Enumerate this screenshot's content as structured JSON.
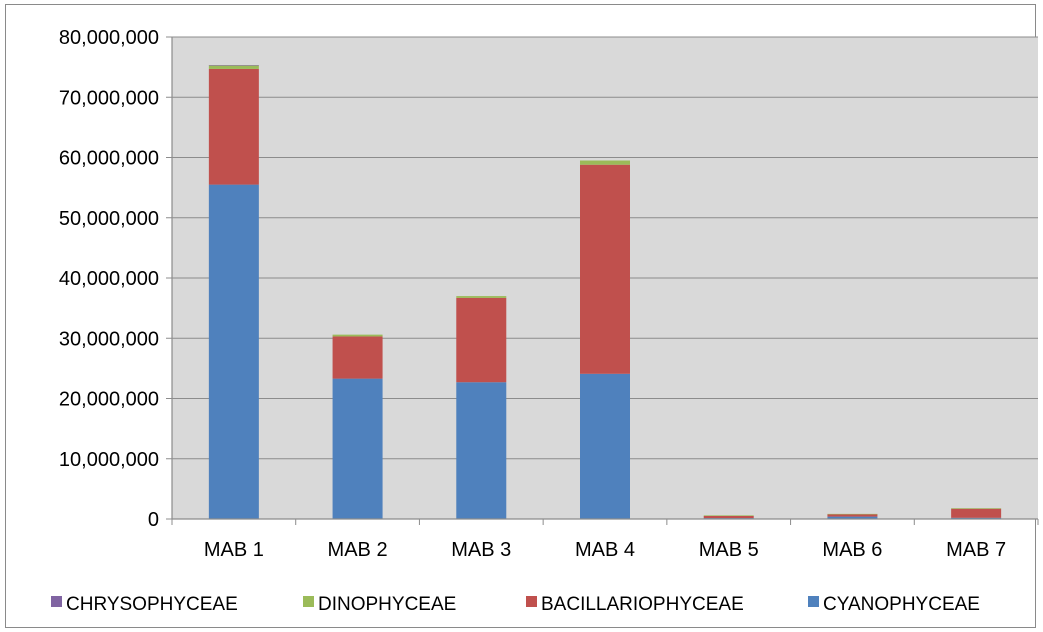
{
  "chart_data": {
    "type": "bar",
    "stacked": true,
    "categories": [
      "MAB 1",
      "MAB 2",
      "MAB 3",
      "MAB 4",
      "MAB 5",
      "MAB 6",
      "MAB 7"
    ],
    "ylim": [
      0,
      80000000
    ],
    "yticks": [
      0,
      10000000,
      20000000,
      30000000,
      40000000,
      50000000,
      60000000,
      70000000,
      80000000
    ],
    "ytick_labels": [
      "0",
      "10,000,000",
      "20,000,000",
      "30,000,000",
      "40,000,000",
      "50,000,000",
      "60,000,000",
      "70,000,000",
      "80,000,000"
    ],
    "grid": true,
    "legend_position": "bottom",
    "series": [
      {
        "name": "CYANOPHYCEAE",
        "color": "#4f81bd",
        "values": [
          55500000,
          23300000,
          22700000,
          24100000,
          150000,
          400000,
          200000
        ]
      },
      {
        "name": "BACILLARIOPHYCEAE",
        "color": "#c0504d",
        "values": [
          19200000,
          7000000,
          14000000,
          34700000,
          350000,
          400000,
          1500000
        ]
      },
      {
        "name": "DINOPHYCEAE",
        "color": "#9bbb59",
        "values": [
          600000,
          300000,
          300000,
          700000,
          100000,
          50000,
          100000
        ]
      },
      {
        "name": "CHRYSOPHYCEAE",
        "color": "#8064a2",
        "values": [
          20000,
          0,
          0,
          0,
          0,
          0,
          0
        ]
      }
    ],
    "legend_order": [
      "CHRYSOPHYCEAE",
      "DINOPHYCEAE",
      "BACILLARIOPHYCEAE",
      "CYANOPHYCEAE"
    ]
  }
}
